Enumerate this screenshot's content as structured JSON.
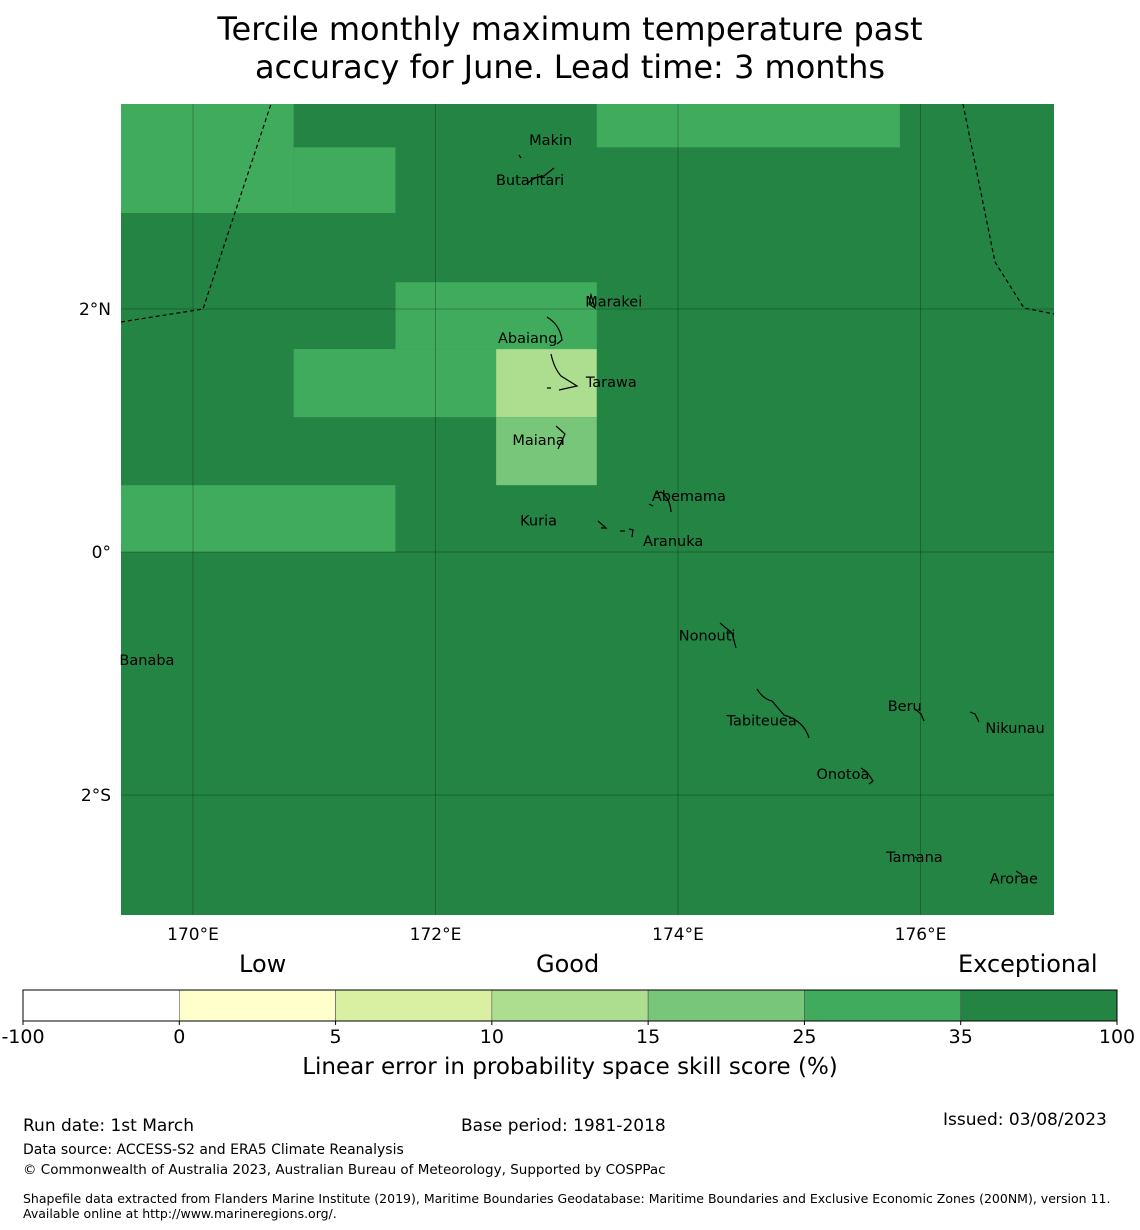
{
  "title": {
    "line1": "Tercile monthly maximum temperature past",
    "line2": "accuracy for June. Lead time: 3 months"
  },
  "map": {
    "background_color": "#238443",
    "lat_ticks": [
      {
        "value": 2,
        "label": "2°N"
      },
      {
        "value": 0,
        "label": "0°"
      },
      {
        "value": -2,
        "label": "2°S"
      }
    ],
    "lon_ticks": [
      {
        "value": 170,
        "label": "170°E"
      },
      {
        "value": 172,
        "label": "172°E"
      },
      {
        "value": 174,
        "label": "174°E"
      },
      {
        "value": 176,
        "label": "176°E"
      }
    ],
    "skill_cells": [
      {
        "lon": [
          169.4,
          170.83
        ],
        "lat": [
          2.79,
          3.7
        ],
        "category": "25 to 35"
      },
      {
        "lon": [
          170.83,
          171.67
        ],
        "lat": [
          2.79,
          3.33
        ],
        "category": "25 to 35"
      },
      {
        "lon": [
          173.33,
          175.83
        ],
        "lat": [
          3.33,
          3.7
        ],
        "category": "25 to 35"
      },
      {
        "lon": [
          171.67,
          173.33
        ],
        "lat": [
          1.67,
          2.22
        ],
        "category": "25 to 35"
      },
      {
        "lon": [
          170.83,
          172.5
        ],
        "lat": [
          1.11,
          1.67
        ],
        "category": "25 to 35"
      },
      {
        "lon": [
          172.5,
          173.33
        ],
        "lat": [
          1.11,
          1.67
        ],
        "category": "10 to 15"
      },
      {
        "lon": [
          172.5,
          173.33
        ],
        "lat": [
          0.55,
          1.11
        ],
        "category": "15 to 25"
      },
      {
        "lon": [
          169.4,
          171.67
        ],
        "lat": [
          0.0,
          0.55
        ],
        "category": "25 to 35"
      }
    ],
    "islands": [
      {
        "name": "Makin",
        "lon": 172.95,
        "lat": 3.35
      },
      {
        "name": "Butaritari",
        "lon": 172.78,
        "lat": 3.02
      },
      {
        "name": "Marakei",
        "lon": 173.47,
        "lat": 2.02
      },
      {
        "name": "Abaiang",
        "lon": 172.76,
        "lat": 1.72
      },
      {
        "name": "Tarawa",
        "lon": 173.45,
        "lat": 1.36
      },
      {
        "name": "Maiana",
        "lon": 172.85,
        "lat": 0.88
      },
      {
        "name": "Abemama",
        "lon": 174.09,
        "lat": 0.42
      },
      {
        "name": "Kuria",
        "lon": 172.85,
        "lat": 0.22
      },
      {
        "name": "Aranuka",
        "lon": 173.96,
        "lat": 0.05
      },
      {
        "name": "Banaba",
        "lon": 169.62,
        "lat": -0.93
      },
      {
        "name": "Nonouti",
        "lon": 174.24,
        "lat": -0.73
      },
      {
        "name": "Tabiteuea",
        "lon": 174.69,
        "lat": -1.43
      },
      {
        "name": "Beru",
        "lon": 175.87,
        "lat": -1.31
      },
      {
        "name": "Nikunau",
        "lon": 176.78,
        "lat": -1.49
      },
      {
        "name": "Onotoa",
        "lon": 175.36,
        "lat": -1.87
      },
      {
        "name": "Tamana",
        "lon": 175.95,
        "lat": -2.55
      },
      {
        "name": "Arorae",
        "lon": 176.77,
        "lat": -2.73
      }
    ]
  },
  "colorbar": {
    "header_labels": [
      "Low",
      "Good",
      "Exceptional"
    ],
    "segments": [
      {
        "from": -100,
        "to": 0,
        "color": "#ffffff"
      },
      {
        "from": 0,
        "to": 5,
        "color": "#ffffcc"
      },
      {
        "from": 5,
        "to": 10,
        "color": "#d9f0a3"
      },
      {
        "from": 10,
        "to": 15,
        "color": "#addd8e"
      },
      {
        "from": 15,
        "to": 25,
        "color": "#78c679"
      },
      {
        "from": 25,
        "to": 35,
        "color": "#41ab5d"
      },
      {
        "from": 35,
        "to": 100,
        "color": "#238443"
      }
    ],
    "tick_labels": [
      "-100",
      "0",
      "5",
      "10",
      "15",
      "25",
      "35",
      "100"
    ],
    "axis_title": "Linear error in probability space skill score (%)"
  },
  "footer": {
    "run_date": "Run date: 1st March",
    "base_period": "Base period: 1981-2018",
    "issued": "Issued: 03/08/2023",
    "data_source": "Data source: ACCESS-S2 and ERA5 Climate Reanalysis",
    "copyright": "© Commonwealth of Australia 2023, Australian Bureau of Meteorology, Supported by COSPPac",
    "shapefile": "Shapefile data extracted from Flanders Marine Institute (2019), Maritime Boundaries Geodatabase: Maritime Boundaries and Exclusive Economic Zones (200NM), version 11. Available online at http://www.marineregions.org/."
  }
}
